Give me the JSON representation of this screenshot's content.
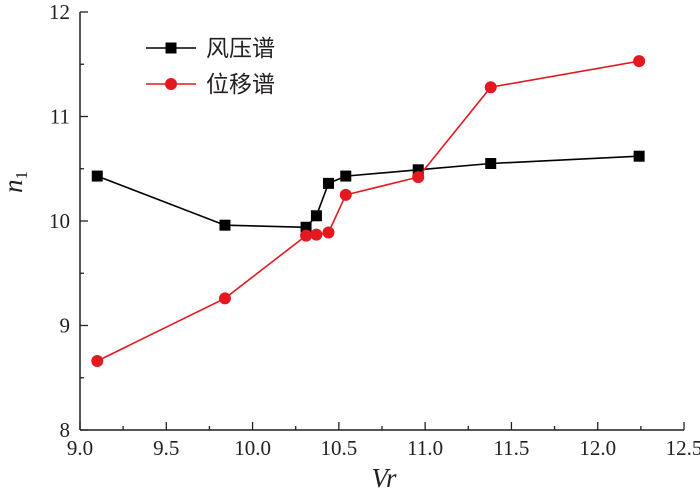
{
  "chart_data": {
    "type": "line",
    "xlabel": "Vr",
    "ylabel": {
      "base": "n",
      "subscript": "1"
    },
    "xlim": [
      9.0,
      12.5
    ],
    "ylim": [
      8,
      12
    ],
    "x_ticks": [
      "9.0",
      "9.5",
      "10.0",
      "10.5",
      "11.0",
      "11.5",
      "12.0",
      "12.5"
    ],
    "y_ticks": [
      "8",
      "9",
      "10",
      "11",
      "12"
    ],
    "grid": false,
    "legend_position": "top-left",
    "series": [
      {
        "name": "风压谱",
        "color": "#000000",
        "marker": "square",
        "x": [
          9.1,
          9.84,
          10.31,
          10.37,
          10.44,
          10.54,
          10.96,
          11.38,
          12.24
        ],
        "y": [
          10.43,
          9.96,
          9.94,
          10.05,
          10.36,
          10.43,
          10.49,
          10.55,
          10.62
        ]
      },
      {
        "name": "位移谱",
        "color": "#e3191f",
        "marker": "circle",
        "x": [
          9.1,
          9.84,
          10.31,
          10.37,
          10.44,
          10.54,
          10.96,
          11.38,
          12.24
        ],
        "y": [
          8.66,
          9.26,
          9.86,
          9.87,
          9.89,
          10.25,
          10.42,
          11.28,
          11.53
        ]
      }
    ]
  }
}
